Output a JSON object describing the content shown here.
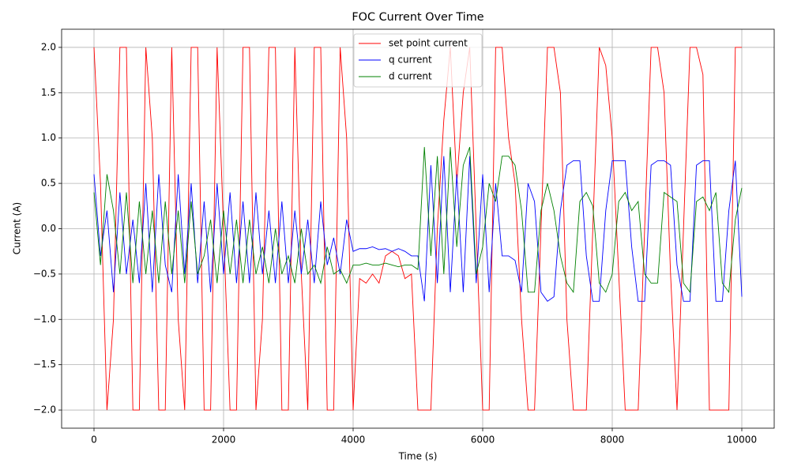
{
  "chart_data": {
    "type": "line",
    "title": "FOC Current Over Time",
    "x_label": "Time (s)",
    "y_label": "Current (A)",
    "x": [
      0,
      100,
      200,
      300,
      400,
      500,
      600,
      700,
      800,
      900,
      1000,
      1100,
      1200,
      1300,
      1400,
      1500,
      1600,
      1700,
      1800,
      1900,
      2000,
      2100,
      2200,
      2300,
      2400,
      2500,
      2600,
      2700,
      2800,
      2900,
      3000,
      3100,
      3200,
      3300,
      3400,
      3500,
      3600,
      3700,
      3800,
      3900,
      4000,
      4100,
      4200,
      4300,
      4400,
      4500,
      4600,
      4700,
      4800,
      4900,
      5000,
      5100,
      5200,
      5300,
      5400,
      5500,
      5600,
      5700,
      5800,
      5900,
      6000,
      6100,
      6200,
      6300,
      6400,
      6500,
      6600,
      6700,
      6800,
      6900,
      7000,
      7100,
      7200,
      7300,
      7400,
      7500,
      7600,
      7700,
      7800,
      7900,
      8000,
      8100,
      8200,
      8300,
      8400,
      8500,
      8600,
      8700,
      8800,
      8900,
      9000,
      9100,
      9200,
      9300,
      9400,
      9500,
      9600,
      9700,
      9800,
      9900,
      10000
    ],
    "series": [
      {
        "name": "set point current",
        "color": "#ff0000",
        "values": [
          2,
          0.5,
          -2,
          -1,
          2,
          2,
          -2,
          -2,
          2,
          1,
          -2,
          -2,
          2,
          -1,
          -2,
          2,
          2,
          -2,
          -2,
          2,
          0,
          -2,
          -2,
          2,
          2,
          -2,
          -1,
          2,
          2,
          -2,
          -2,
          2,
          -0.5,
          -2,
          2,
          2,
          -2,
          -2,
          2,
          1,
          -2,
          -0.55,
          -0.6,
          -0.5,
          -0.6,
          -0.3,
          -0.25,
          -0.3,
          -0.55,
          -0.5,
          -2,
          -2,
          -2,
          0,
          1.2,
          2,
          0.5,
          1.5,
          2,
          0,
          -2,
          -2,
          2,
          2,
          1,
          0.5,
          -1,
          -2,
          -2,
          0,
          2,
          2,
          1.5,
          -1,
          -2,
          -2,
          -2,
          0,
          2,
          1.8,
          1,
          -0.5,
          -2,
          -2,
          -2,
          0,
          2,
          2,
          1.5,
          -0.5,
          -2,
          0,
          2,
          2,
          1.7,
          -2,
          -2,
          -2,
          -2,
          2,
          2
        ]
      },
      {
        "name": "q current",
        "color": "#0000ff",
        "values": [
          0.6,
          -0.3,
          0.2,
          -0.7,
          0.4,
          -0.5,
          0.1,
          -0.6,
          0.5,
          -0.7,
          0.6,
          -0.4,
          -0.7,
          0.6,
          -0.5,
          0.5,
          -0.6,
          0.3,
          -0.7,
          0.5,
          -0.5,
          0.4,
          -0.6,
          0.3,
          -0.6,
          0.4,
          -0.5,
          0.2,
          -0.6,
          0.3,
          -0.6,
          0.2,
          -0.5,
          0.1,
          -0.6,
          0.3,
          -0.4,
          -0.1,
          -0.5,
          0.1,
          -0.25,
          -0.22,
          -0.22,
          -0.2,
          -0.23,
          -0.22,
          -0.25,
          -0.22,
          -0.25,
          -0.3,
          -0.3,
          -0.8,
          0.7,
          -0.6,
          0.8,
          -0.7,
          0.6,
          -0.7,
          0.8,
          -0.6,
          0.6,
          -0.7,
          0.5,
          -0.3,
          -0.3,
          -0.35,
          -0.7,
          0.5,
          0.3,
          -0.7,
          -0.8,
          -0.75,
          0.2,
          0.7,
          0.75,
          0.75,
          -0.3,
          -0.8,
          -0.8,
          0.2,
          0.75,
          0.75,
          0.75,
          -0.2,
          -0.8,
          -0.8,
          0.7,
          0.75,
          0.75,
          0.7,
          -0.4,
          -0.8,
          -0.8,
          0.7,
          0.75,
          0.75,
          -0.8,
          -0.8,
          0.2,
          0.75,
          -0.75
        ]
      },
      {
        "name": "d current",
        "color": "#008000",
        "values": [
          0.4,
          -0.4,
          0.6,
          0.2,
          -0.5,
          0.4,
          -0.6,
          0.3,
          -0.5,
          0.2,
          -0.6,
          0.3,
          -0.5,
          0.2,
          -0.6,
          0.3,
          -0.5,
          -0.3,
          0.1,
          -0.6,
          0.2,
          -0.5,
          0.1,
          -0.6,
          0.1,
          -0.5,
          -0.2,
          -0.6,
          0.0,
          -0.5,
          -0.3,
          -0.6,
          0.0,
          -0.5,
          -0.4,
          -0.6,
          -0.2,
          -0.5,
          -0.45,
          -0.6,
          -0.4,
          -0.4,
          -0.38,
          -0.4,
          -0.4,
          -0.38,
          -0.4,
          -0.42,
          -0.4,
          -0.4,
          -0.45,
          0.9,
          -0.3,
          0.8,
          -0.5,
          0.9,
          -0.2,
          0.7,
          0.9,
          -0.5,
          -0.2,
          0.5,
          0.3,
          0.8,
          0.8,
          0.7,
          0.2,
          -0.7,
          -0.7,
          0.2,
          0.5,
          0.2,
          -0.3,
          -0.6,
          -0.7,
          0.3,
          0.4,
          0.25,
          -0.6,
          -0.7,
          -0.5,
          0.3,
          0.4,
          0.2,
          0.3,
          -0.5,
          -0.6,
          -0.6,
          0.4,
          0.35,
          0.3,
          -0.6,
          -0.7,
          0.3,
          0.35,
          0.2,
          0.4,
          -0.6,
          -0.7,
          0.1,
          0.45
        ]
      }
    ],
    "xlim": [
      -500,
      10500
    ],
    "ylim": [
      -2.2,
      2.2
    ],
    "xticks": [
      0,
      2000,
      4000,
      6000,
      8000,
      10000
    ],
    "yticks": [
      {
        "value": -2,
        "label": "−2.0"
      },
      {
        "value": -1.5,
        "label": "−1.5"
      },
      {
        "value": -1,
        "label": "−1.0"
      },
      {
        "value": -0.5,
        "label": "−0.5"
      },
      {
        "value": 0,
        "label": "0.0"
      },
      0.5,
      {
        "value": 1,
        "label": "1.0"
      },
      1.5,
      {
        "value": 2,
        "label": "2.0"
      }
    ],
    "grid": true,
    "legend": "upper center"
  }
}
